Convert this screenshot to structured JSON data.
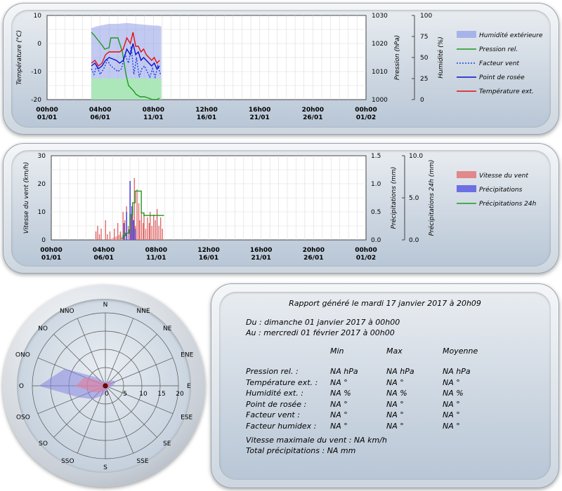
{
  "chart_data": [
    {
      "type": "line",
      "name": "temperature-pressure-humidity",
      "x_ticks": [
        [
          "00h00",
          "01/01"
        ],
        [
          "04h00",
          "06/01"
        ],
        [
          "08h00",
          "11/01"
        ],
        [
          "12h00",
          "16/01"
        ],
        [
          "16h00",
          "21/01"
        ],
        [
          "20h00",
          "26/01"
        ],
        [
          "00h00",
          "01/02"
        ]
      ],
      "y_left": {
        "label": "Température (°C)",
        "min": -20,
        "max": 10,
        "ticks": [
          "10",
          "0",
          "-10",
          "-20"
        ]
      },
      "y_right": {
        "label": "Pression (hPa)",
        "min": 1000,
        "max": 1030,
        "ticks": [
          "1030",
          "1020",
          "1010",
          "1000"
        ]
      },
      "y_right2": {
        "label": "Humidité (%)",
        "min": 0,
        "max": 100,
        "ticks": [
          "100",
          "75",
          "50",
          "25",
          "0"
        ]
      },
      "legend": [
        "Humidité extérieure",
        "Pression rel.",
        "Facteur vent",
        "Point de rosée",
        "Température ext."
      ],
      "colors": {
        "humidity": "#8f9fe8",
        "humidity_low": "#a8ecb0",
        "pressure": "#1c9a1c",
        "windchill": "#1a3fe0",
        "dewpoint": "#0a10cc",
        "temperature": "#e01010"
      },
      "series": [
        {
          "name": "Humidité extérieure",
          "axis": "y_right2",
          "x": [
            5,
            5.6,
            6.5,
            7,
            8,
            9,
            10,
            11,
            12,
            12.5,
            12.9
          ],
          "values": [
            85,
            87,
            89,
            90,
            90,
            91,
            90,
            89,
            88,
            88,
            87
          ]
        },
        {
          "name": "Pression rel.",
          "axis": "y_right",
          "x": [
            5,
            5.3,
            5.8,
            6.3,
            6.5,
            7,
            7.2,
            8,
            8.2,
            8.5,
            8.7,
            8.9,
            9.2,
            9.5,
            9.8,
            10,
            10.5,
            11,
            11.5,
            11.9,
            12.4,
            12.7
          ],
          "values": [
            1024,
            1023,
            1021,
            1019,
            1018,
            1018.5,
            1022,
            1022,
            1020,
            1017,
            1013,
            1009,
            1005,
            1004,
            1003,
            1002,
            1001,
            1001,
            1000.5,
            1000,
            1000,
            1000.5
          ]
        },
        {
          "name": "Facteur vent",
          "axis": "y_left",
          "x": [
            5,
            5.3,
            5.6,
            6,
            6.4,
            6.8,
            7.2,
            7.6,
            8,
            8.4,
            8.8,
            9.2,
            9.5,
            9.8,
            10.1,
            10.4,
            10.7,
            11,
            11.3,
            11.6,
            11.9,
            12.2,
            12.5,
            12.8
          ],
          "values": [
            -9,
            -11,
            -8,
            -11,
            -9,
            -6,
            -8,
            -9,
            -10,
            -9,
            -4,
            -7,
            -1,
            -11,
            -5,
            -12,
            -9,
            -8,
            -10,
            -12,
            -9,
            -12,
            -8,
            -11
          ]
        },
        {
          "name": "Point de rosée",
          "axis": "y_left",
          "x": [
            5,
            5.4,
            5.8,
            6.2,
            6.6,
            7,
            7.4,
            7.8,
            8.2,
            8.6,
            9,
            9.4,
            9.7,
            10,
            10.3,
            10.6,
            10.9,
            11.2,
            11.5,
            11.8,
            12.1,
            12.4,
            12.7
          ],
          "values": [
            -8,
            -7,
            -9,
            -8,
            -6,
            -5,
            -5.5,
            -6,
            -7,
            -6,
            -2,
            -4,
            0,
            -4,
            -3,
            -6,
            -5,
            -6,
            -7,
            -8,
            -7,
            -9,
            -8
          ]
        },
        {
          "name": "Température ext.",
          "axis": "y_left",
          "x": [
            5,
            5.4,
            5.8,
            6.2,
            6.6,
            7,
            7.4,
            7.8,
            8.2,
            8.6,
            9,
            9.4,
            9.7,
            10,
            10.3,
            10.6,
            10.9,
            11.2,
            11.5,
            11.8,
            12.1,
            12.4,
            12.7
          ],
          "values": [
            -7,
            -6,
            -8,
            -7,
            -4,
            -3,
            -3,
            -3,
            -3,
            -2,
            2,
            0,
            4,
            -1,
            -1,
            -3,
            -2,
            -4,
            -5,
            -6,
            -5,
            -7,
            -6
          ]
        }
      ]
    },
    {
      "type": "bar",
      "name": "wind-precipitation",
      "x_ticks": [
        [
          "00h00",
          "01/01"
        ],
        [
          "04h00",
          "06/01"
        ],
        [
          "08h00",
          "11/01"
        ],
        [
          "12h00",
          "16/01"
        ],
        [
          "16h00",
          "21/01"
        ],
        [
          "20h00",
          "26/01"
        ],
        [
          "00h00",
          "01/02"
        ]
      ],
      "y_left": {
        "label": "Vitesse du vent (km/h)",
        "min": 0,
        "max": 30,
        "ticks": [
          "30",
          "20",
          "10",
          "0"
        ]
      },
      "y_right": {
        "label": "Précipitations (mm)",
        "min": 0,
        "max": 1.5,
        "ticks": [
          "1.5",
          "1.0",
          "0.5",
          "0.0"
        ]
      },
      "y_right2": {
        "label": "Précipitations 24h (mm)",
        "min": 0,
        "max": 10,
        "ticks": [
          "10.0",
          "5.0",
          "0.0"
        ]
      },
      "legend": [
        "Vitesse du vent",
        "Précipitations",
        "Précipitations 24h"
      ],
      "colors": {
        "wind": "#e06a6a",
        "precip": "#4a4ae0",
        "precip24": "#1c9a1c",
        "wind_area": "#e9a0a0"
      },
      "wind_bars": {
        "x": [
          5.1,
          5.3,
          5.5,
          5.7,
          6.2,
          6.4,
          6.7,
          7.2,
          7.6,
          7.9,
          8.2,
          8.4,
          8.6,
          8.8,
          9.0,
          9.1,
          9.3,
          9.5,
          9.6,
          9.8,
          10.0,
          10.1,
          10.3,
          10.5,
          10.6,
          10.8,
          11.0,
          11.2,
          11.3,
          11.5,
          11.7,
          11.9,
          12.1,
          12.3,
          12.5,
          12.7
        ],
        "values": [
          3,
          5,
          2,
          4,
          7,
          2,
          3,
          4,
          6,
          3,
          10,
          7,
          12,
          5,
          16,
          9,
          12,
          22,
          5,
          18,
          13,
          7,
          10,
          6,
          9,
          4,
          8,
          6,
          10,
          5,
          9,
          7,
          11,
          5,
          8,
          4
        ]
      },
      "precip_bars": {
        "x": [
          8.3,
          8.6,
          9.0,
          9.2,
          9.4,
          9.6
        ],
        "values": [
          0.3,
          0.5,
          1.05,
          0.6,
          0.35,
          0.2
        ]
      },
      "precip24": {
        "x": [
          8.0,
          8.2,
          8.5,
          8.9,
          9.0,
          9.3,
          9.6,
          10.0,
          10.3,
          10.6,
          12.9
        ],
        "values": [
          0.2,
          0.5,
          0.8,
          1.2,
          3.0,
          4.4,
          5.8,
          5.8,
          3.2,
          2.9,
          2.9
        ]
      },
      "wind_area": {
        "x": [
          6.6,
          7.3,
          8.0,
          8.1
        ],
        "values": [
          0,
          1,
          2.2,
          0
        ]
      }
    },
    {
      "type": "radar",
      "name": "wind-rose",
      "directions": [
        "N",
        "NNE",
        "NE",
        "ENE",
        "E",
        "ESE",
        "SE",
        "SSE",
        "S",
        "SSO",
        "SO",
        "OSO",
        "O",
        "ONO",
        "NO",
        "NNO"
      ],
      "radial_ticks": [
        "0",
        "5",
        "10",
        "15",
        "20"
      ],
      "r_max": 20,
      "series": [
        {
          "name": "outer",
          "values": [
            1,
            1,
            2,
            3,
            2,
            1,
            1,
            1,
            2,
            3,
            5,
            8,
            18,
            12,
            3,
            1
          ],
          "color": "#8888e0"
        },
        {
          "name": "inner",
          "values": [
            0.5,
            0.6,
            1.2,
            2,
            1.2,
            0.6,
            0.6,
            0.6,
            1,
            1.5,
            2.5,
            4,
            8,
            6,
            1.5,
            0.5
          ],
          "color": "#e080a0"
        }
      ]
    }
  ],
  "report": {
    "title": "Rapport généré le mardi 17 janvier 2017 à 20h09",
    "from": "Du : dimanche 01 janvier 2017 à 00h00",
    "to": "Au : mercredi 01 février 2017 à 00h00",
    "headers": [
      "Min",
      "Max",
      "Moyenne"
    ],
    "rows": [
      {
        "label": "Pression rel. :",
        "min": "NA hPa",
        "max": "NA hPa",
        "mean": "NA hPa"
      },
      {
        "label": "Température ext. :",
        "min": "NA °",
        "max": "NA °",
        "mean": "NA °"
      },
      {
        "label": "Humidité ext. :",
        "min": "NA %",
        "max": "NA %",
        "mean": "NA %"
      },
      {
        "label": "Point de rosée :",
        "min": "NA °",
        "max": "NA °",
        "mean": "NA °"
      },
      {
        "label": "Facteur vent :",
        "min": "NA °",
        "max": "NA °",
        "mean": "NA °"
      },
      {
        "label": "Facteur humidex :",
        "min": "NA °",
        "max": "NA °",
        "mean": "NA °"
      }
    ],
    "max_wind": "Vitesse maximale du vent : NA km/h",
    "total_precip": "Total précipitations : NA mm"
  }
}
